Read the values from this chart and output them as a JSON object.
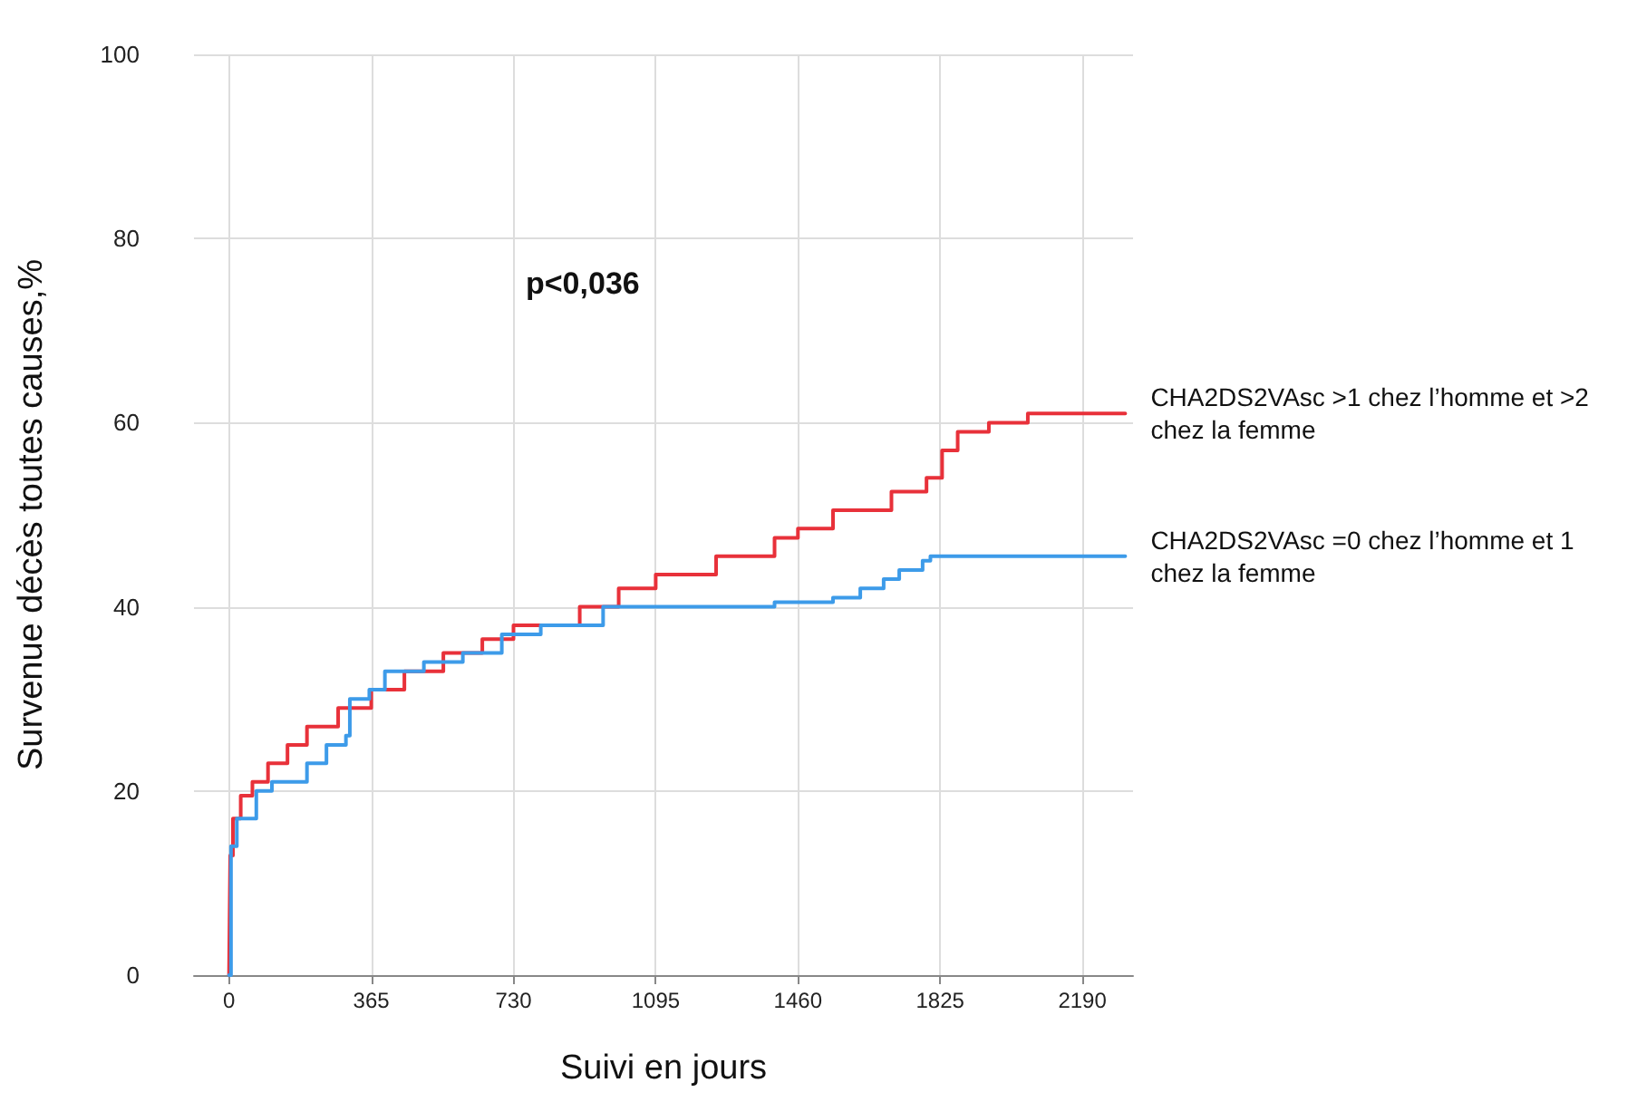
{
  "chart_data": {
    "type": "step",
    "xlabel": "Suivi en jours",
    "ylabel": "Survenue décès toutes causes,%",
    "annotations": [
      "p<0,036"
    ],
    "xlim": [
      -90,
      2320
    ],
    "xticks": [
      0,
      365,
      730,
      1095,
      1460,
      1825,
      2190
    ],
    "ylim": [
      0,
      100
    ],
    "yticks": [
      0,
      20,
      40,
      60,
      80,
      100
    ],
    "grid": true,
    "marker": "none",
    "line_style": "solid",
    "series": [
      {
        "name": "CHA2DS2VAsc >1 chez l’homme et >2 chez la femme",
        "color": "#e8313a",
        "x": [
          0,
          3,
          10,
          30,
          60,
          100,
          150,
          200,
          280,
          365,
          450,
          550,
          650,
          730,
          900,
          1000,
          1095,
          1250,
          1400,
          1460,
          1550,
          1700,
          1790,
          1830,
          1870,
          1950,
          2050,
          2300
        ],
        "values": [
          0,
          13,
          17,
          19.5,
          21,
          23,
          25,
          27,
          29,
          31,
          33,
          35,
          36.5,
          38,
          40,
          42,
          43.5,
          45.5,
          47.5,
          48.5,
          50.5,
          52.5,
          54,
          57,
          59,
          60,
          61,
          61
        ]
      },
      {
        "name": "CHA2DS2VAsc =0 chez l’homme et 1 chez la femme",
        "color": "#3d9be9",
        "x": [
          0,
          5,
          20,
          70,
          110,
          200,
          250,
          300,
          310,
          360,
          400,
          500,
          600,
          700,
          800,
          960,
          1400,
          1550,
          1620,
          1680,
          1720,
          1780,
          1800,
          2300
        ],
        "values": [
          0,
          14,
          17,
          20,
          21,
          23,
          25,
          26,
          30,
          31,
          33,
          34,
          35,
          37,
          38,
          40,
          40.5,
          41,
          42,
          43,
          44,
          45,
          45.5,
          45.5
        ]
      }
    ]
  }
}
